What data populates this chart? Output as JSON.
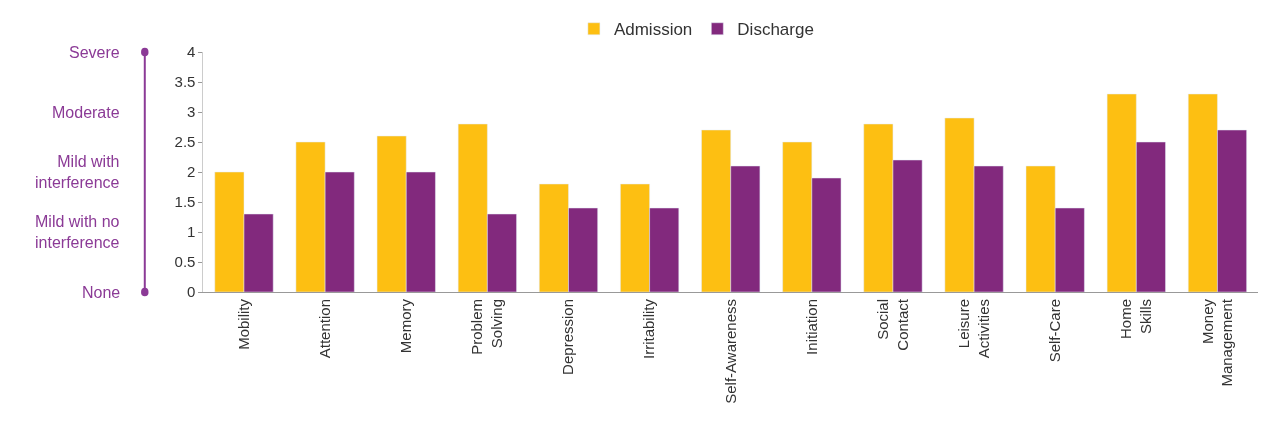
{
  "chart_data": {
    "type": "bar",
    "categories": [
      "Mobility",
      "Attention",
      "Memory",
      "Problem\nSolving",
      "Depression",
      "Irritability",
      "Self-Awareness",
      "Initiation",
      "Social\nContact",
      "Leisure\nActivities",
      "Self-Care",
      "Home\nSkills",
      "Money\nManagement"
    ],
    "series": [
      {
        "name": "Admission",
        "color": "#fdbf12",
        "values": [
          2,
          2.5,
          2.6,
          2.8,
          1.8,
          1.8,
          2.7,
          2.5,
          2.8,
          2.9,
          2.1,
          3.3,
          3.3
        ]
      },
      {
        "name": "Discharge",
        "color": "#82297d",
        "values": [
          1.3,
          2,
          2,
          1.3,
          1.4,
          1.4,
          2.1,
          1.9,
          2.2,
          2.1,
          1.4,
          2.5,
          2.7
        ]
      }
    ],
    "ylim": [
      0,
      4
    ],
    "yticks": [
      0,
      0.5,
      1,
      1.5,
      2,
      2.5,
      3,
      3.5,
      4
    ],
    "annotations": [
      "Severe",
      "Moderate",
      "Mild with\ninterference",
      "Mild with no\ninterference",
      "None"
    ],
    "legend": "top"
  }
}
